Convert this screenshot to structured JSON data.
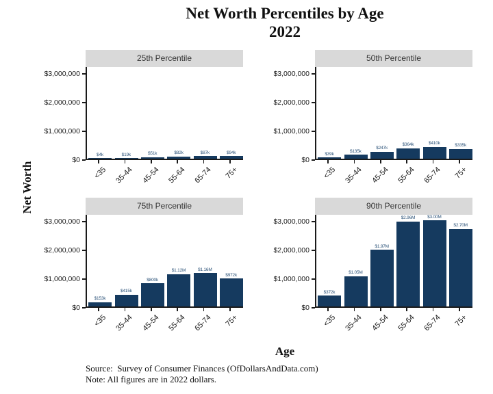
{
  "title": {
    "line1": "Net Worth Percentiles by Age",
    "line2": "2022"
  },
  "axes": {
    "y_title": "Net Worth",
    "x_title": "Age",
    "y_ticks": [
      {
        "label": "$0",
        "value": 0
      },
      {
        "label": "$1,000,000",
        "value": 1000000
      },
      {
        "label": "$2,000,000",
        "value": 2000000
      },
      {
        "label": "$3,000,000",
        "value": 3000000
      }
    ],
    "categories": [
      "<35",
      "35-44",
      "45-54",
      "55-64",
      "65-74",
      "75+"
    ]
  },
  "footer": {
    "source": "Source:  Survey of Consumer Finances (OfDollarsAndData.com)",
    "note": "Note: All figures are in 2022 dollars."
  },
  "colors": {
    "bar": "#153a5f",
    "strip_bg": "#d9d9d9",
    "axis_text": "#1a1a1a",
    "bar_label": "#2b5278"
  },
  "chart_data": {
    "type": "bar",
    "title": "Net Worth Percentiles by Age 2022",
    "xlabel": "Age",
    "ylabel": "Net Worth",
    "ylim": [
      0,
      3100000
    ],
    "grid": "off",
    "legend": "none",
    "categories": [
      "<35",
      "35-44",
      "45-54",
      "55-64",
      "65-74",
      "75+"
    ],
    "panels": [
      {
        "title": "25th Percentile",
        "values": [
          4000,
          19000,
          51000,
          82000,
          87000,
          94000
        ],
        "labels": [
          "$4k",
          "$19k",
          "$51k",
          "$82k",
          "$87k",
          "$94k"
        ]
      },
      {
        "title": "50th Percentile",
        "values": [
          39000,
          135000,
          247000,
          364000,
          410000,
          335000
        ],
        "labels": [
          "$39k",
          "$135k",
          "$247k",
          "$364k",
          "$410k",
          "$335k"
        ]
      },
      {
        "title": "75th Percentile",
        "values": [
          153000,
          415000,
          800000,
          1120000,
          1160000,
          972000
        ],
        "labels": [
          "$153k",
          "$415k",
          "$800k",
          "$1.12M",
          "$1.16M",
          "$972k"
        ]
      },
      {
        "title": "90th Percentile",
        "values": [
          372000,
          1050000,
          1970000,
          2960000,
          3000000,
          2700000
        ],
        "labels": [
          "$372k",
          "$1.05M",
          "$1.97M",
          "$2.96M",
          "$3.00M",
          "$2.70M"
        ]
      }
    ]
  }
}
